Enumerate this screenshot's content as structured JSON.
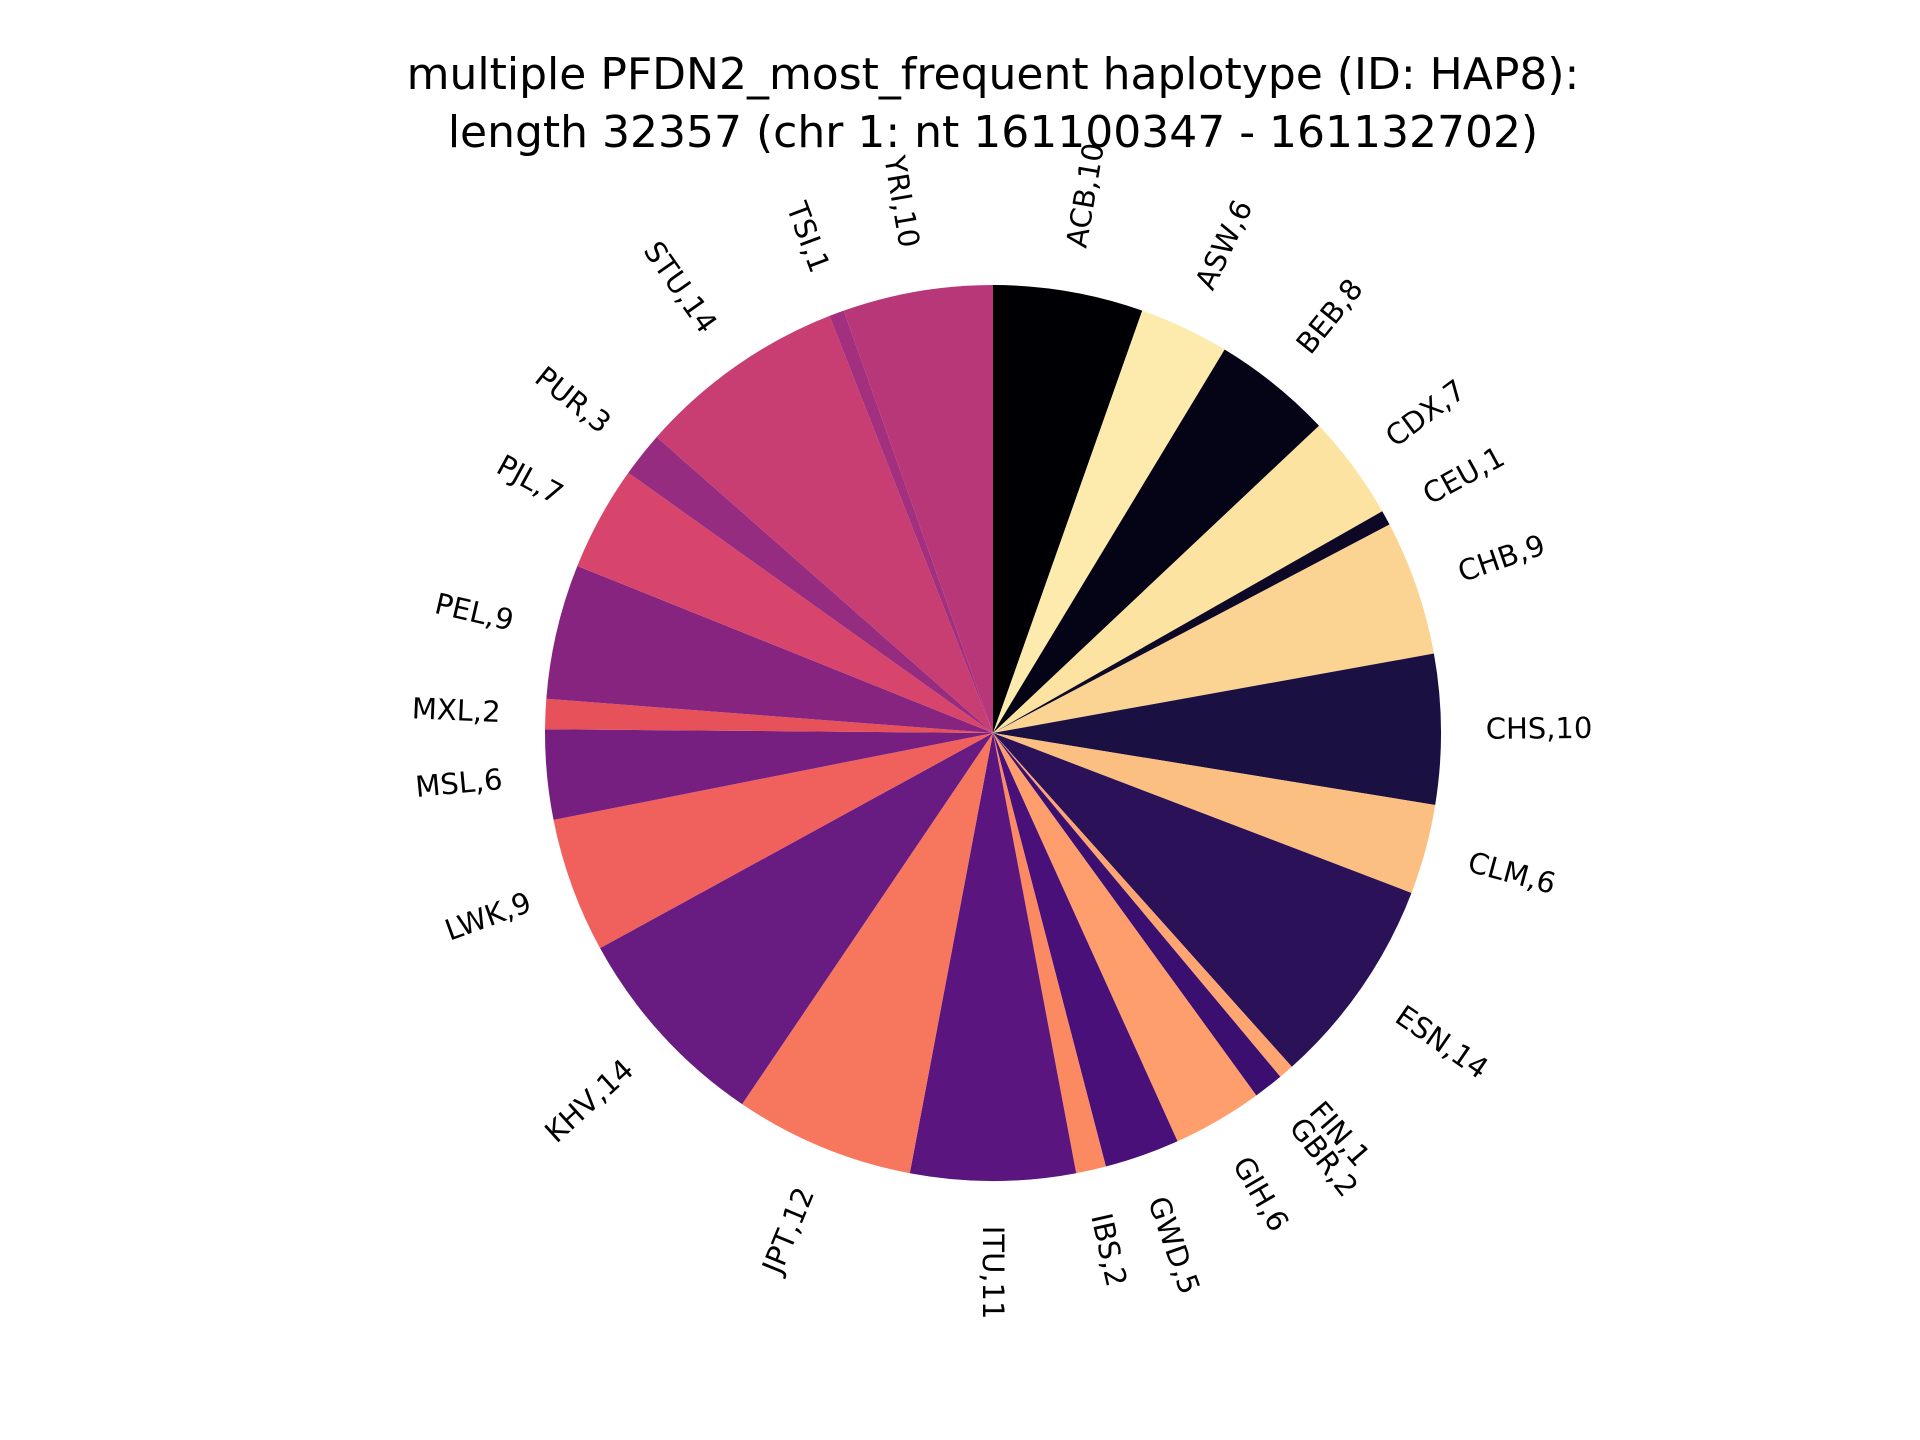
{
  "chart_data": {
    "type": "pie",
    "title_lines": [
      "multiple PFDN2_most_frequent haplotype (ID: HAP8):",
      "length 32357 (chr 1: nt 161100347 - 161132702)"
    ],
    "start_angle_deg": 90,
    "direction": "clockwise",
    "slices": [
      {
        "label": "ACB,10",
        "value": 10,
        "color": "#000004"
      },
      {
        "label": "ASW,6",
        "value": 6,
        "color": "#fcebac"
      },
      {
        "label": "BEB,8",
        "value": 8,
        "color": "#050416"
      },
      {
        "label": "CDX,7",
        "value": 7,
        "color": "#fce3a2"
      },
      {
        "label": "CEU,1",
        "value": 1,
        "color": "#0c0826"
      },
      {
        "label": "CHB,9",
        "value": 9,
        "color": "#fbd494"
      },
      {
        "label": "CHS,10",
        "value": 10,
        "color": "#1a1042"
      },
      {
        "label": "CLM,6",
        "value": 6,
        "color": "#fcbf82"
      },
      {
        "label": "ESN,14",
        "value": 14,
        "color": "#2a1158"
      },
      {
        "label": "FIN,1",
        "value": 1,
        "color": "#fea572"
      },
      {
        "label": "GBR,2",
        "value": 2,
        "color": "#3b0f70"
      },
      {
        "label": "GIH,6",
        "value": 6,
        "color": "#fe9e6c"
      },
      {
        "label": "GWD,5",
        "value": 5,
        "color": "#4a1079"
      },
      {
        "label": "IBS,2",
        "value": 2,
        "color": "#fb8a62"
      },
      {
        "label": "ITU,11",
        "value": 11,
        "color": "#5a167e"
      },
      {
        "label": "JPT,12",
        "value": 12,
        "color": "#f6775e"
      },
      {
        "label": "KHV,14",
        "value": 14,
        "color": "#681b80"
      },
      {
        "label": "LWK,9",
        "value": 9,
        "color": "#f0605d"
      },
      {
        "label": "MSL,6",
        "value": 6,
        "color": "#771f81"
      },
      {
        "label": "MXL,2",
        "value": 2,
        "color": "#e6515a"
      },
      {
        "label": "PEL,9",
        "value": 9,
        "color": "#87247f"
      },
      {
        "label": "PJL,7",
        "value": 7,
        "color": "#d8456c"
      },
      {
        "label": "PUR,3",
        "value": 3,
        "color": "#952c80"
      },
      {
        "label": "STU,14",
        "value": 14,
        "color": "#c83e73"
      },
      {
        "label": "TSI,1",
        "value": 1,
        "color": "#a3307e"
      },
      {
        "label": "YRI,10",
        "value": 10,
        "color": "#b73779"
      }
    ]
  }
}
